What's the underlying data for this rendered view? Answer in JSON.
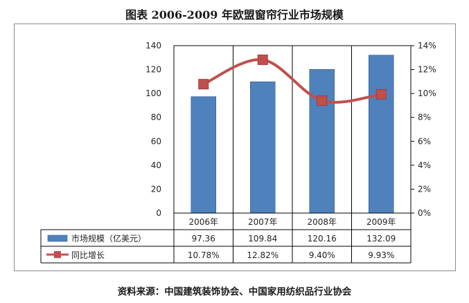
{
  "title": "图表  2006-2009 年欧盟窗帘行业市场规模",
  "source": "资料来源：中国建筑装饰协会、中国家用纺织品行业协会",
  "colors": {
    "bar": "#4f81bd",
    "bar_edge": "#2e5c94",
    "line": "#c0504d",
    "grid": "#000000"
  },
  "chart_data": {
    "type": "bar",
    "categories": [
      "2006年",
      "2007年",
      "2008年",
      "2009年"
    ],
    "series": [
      {
        "name": "市场规模（亿美元）",
        "type": "bar",
        "axis": "left",
        "values": [
          97.36,
          109.84,
          120.16,
          132.09
        ],
        "labels": [
          "97.36",
          "109.84",
          "120.16",
          "132.09"
        ]
      },
      {
        "name": "同比增长",
        "type": "line",
        "axis": "right",
        "values": [
          10.78,
          12.82,
          9.4,
          9.93
        ],
        "labels": [
          "10.78%",
          "12.82%",
          "9.40%",
          "9.93%"
        ]
      }
    ],
    "y_left": {
      "ylim": [
        0,
        140
      ],
      "ticks": [
        "0",
        "20",
        "40",
        "60",
        "80",
        "100",
        "120",
        "140"
      ]
    },
    "y_right": {
      "ylim": [
        0,
        14
      ],
      "ticks": [
        "0%",
        "2%",
        "4%",
        "6%",
        "8%",
        "10%",
        "12%",
        "14%"
      ]
    },
    "legend": "data-table",
    "grid": true
  }
}
